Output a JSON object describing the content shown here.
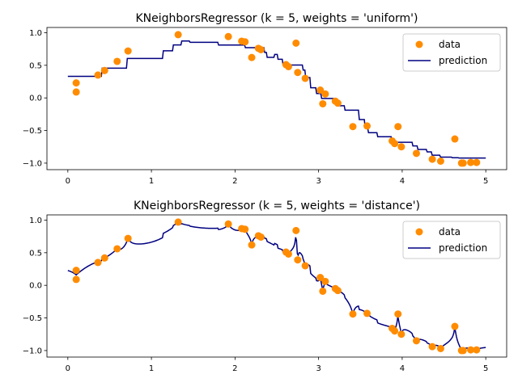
{
  "chart_data": [
    {
      "type": "scatter+line",
      "title": "KNeighborsRegressor (k = 5, weights = 'uniform')",
      "k": 5,
      "weights": "uniform",
      "xlim": [
        -0.25,
        5.25
      ],
      "ylim": [
        -1.1,
        1.08
      ],
      "xticks": [
        0,
        1,
        2,
        3,
        4,
        5
      ],
      "yticks": [
        -1.0,
        -0.5,
        0.0,
        0.5,
        1.0
      ],
      "legend": {
        "position": "upper right",
        "entries": [
          "data",
          "prediction"
        ]
      },
      "grid": false
    },
    {
      "type": "scatter+line",
      "title": "KNeighborsRegressor (k = 5, weights = 'distance')",
      "k": 5,
      "weights": "distance",
      "xlim": [
        -0.25,
        5.25
      ],
      "ylim": [
        -1.1,
        1.08
      ],
      "xticks": [
        0,
        1,
        2,
        3,
        4,
        5
      ],
      "yticks": [
        -1.0,
        -0.5,
        0.0,
        0.5,
        1.0
      ],
      "legend": {
        "position": "upper right",
        "entries": [
          "data",
          "prediction"
        ]
      },
      "grid": false
    }
  ],
  "data_points": {
    "x": [
      0.1,
      0.1,
      0.36,
      0.44,
      0.59,
      0.72,
      1.32,
      1.92,
      2.08,
      2.12,
      2.2,
      2.28,
      2.31,
      2.61,
      2.64,
      2.73,
      2.75,
      2.84,
      3.02,
      3.05,
      3.08,
      3.2,
      3.23,
      3.41,
      3.58,
      3.88,
      3.91,
      3.95,
      3.99,
      4.17,
      4.36,
      4.46,
      4.63,
      4.71,
      4.73,
      4.82,
      4.89
    ],
    "y": [
      0.23,
      0.09,
      0.35,
      0.42,
      0.56,
      0.72,
      0.97,
      0.94,
      0.87,
      0.86,
      0.62,
      0.76,
      0.74,
      0.51,
      0.48,
      0.84,
      0.39,
      0.3,
      0.12,
      -0.09,
      0.06,
      -0.05,
      -0.08,
      -0.44,
      -0.43,
      -0.66,
      -0.7,
      -0.44,
      -0.75,
      -0.85,
      -0.94,
      -0.97,
      -0.63,
      -1.0,
      -1.0,
      -0.99,
      -0.99
    ]
  },
  "prediction_range": [
    0,
    5
  ],
  "colors": {
    "data": "#ff8c00",
    "prediction": "#000080"
  }
}
